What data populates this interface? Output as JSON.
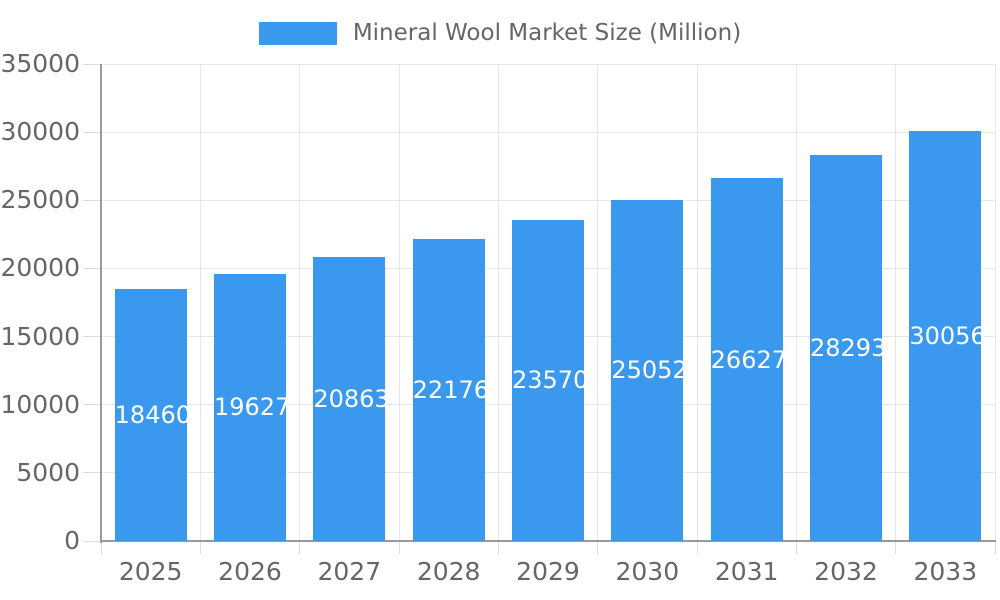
{
  "chart_data": {
    "type": "bar",
    "title": "Mineral Wool Market Size (Million)",
    "legend_position": "top",
    "categories": [
      "2025",
      "2026",
      "2027",
      "2028",
      "2029",
      "2030",
      "2031",
      "2032",
      "2033"
    ],
    "series": [
      {
        "name": "Mineral Wool Market Size (Million)",
        "values": [
          18460,
          19627,
          20863,
          22176,
          23570,
          25052,
          26627,
          28293,
          30056
        ]
      }
    ],
    "xlabel": "",
    "ylabel": "",
    "ylim": [
      0,
      35000
    ],
    "ytick_step": 5000,
    "ytick_labels": [
      "0",
      "5000",
      "10000",
      "15000",
      "20000",
      "25000",
      "30000",
      "35000"
    ],
    "grid": true,
    "value_labels": "inside-center"
  },
  "style": {
    "bar_color": "#3a99ee",
    "value_label_color": "#ffffff",
    "grid_color": "#e6e6e6",
    "tick_color": "#dedede",
    "axis_color": "#999999",
    "text_color": "#666666",
    "background": "#ffffff"
  }
}
